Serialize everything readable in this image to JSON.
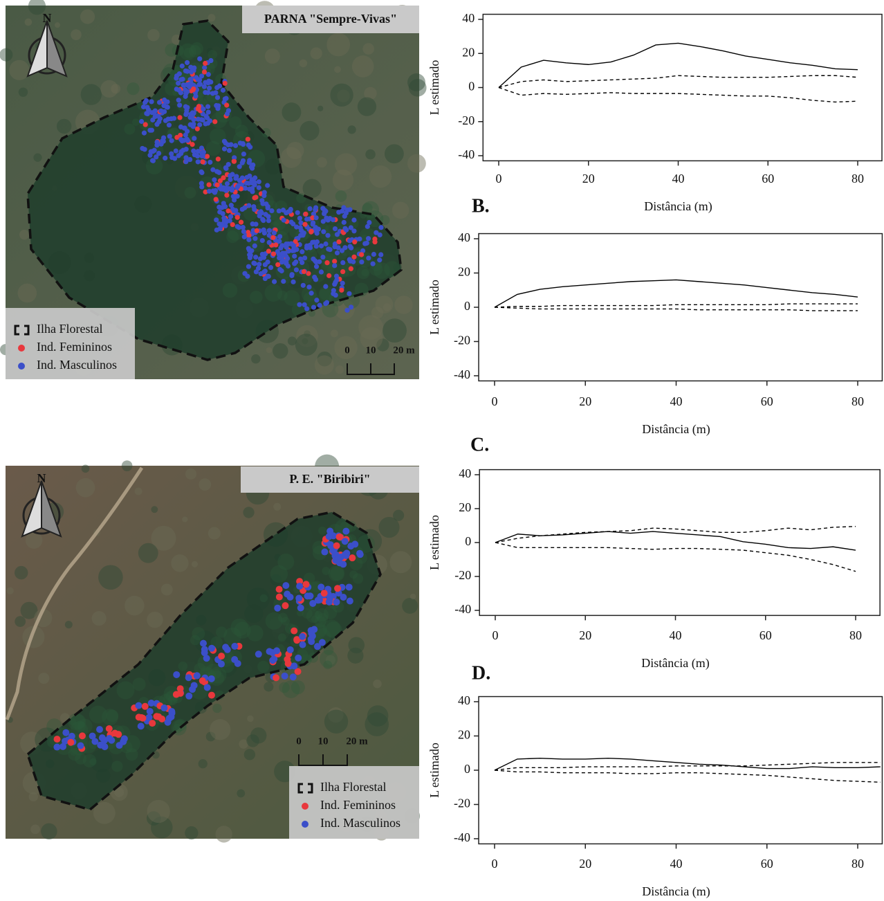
{
  "maps": [
    {
      "title": "PARNA \"Sempre-Vivas\"",
      "north": "N",
      "legend": [
        "Ilha Florestal",
        "Ind. Femininos",
        "Ind. Masculinos"
      ],
      "scale": [
        "0",
        "10",
        "20 m"
      ]
    },
    {
      "title": "P. E. \"Biribiri\"",
      "north": "N",
      "legend": [
        "Ilha Florestal",
        "Ind. Femininos",
        "Ind. Masculinos"
      ],
      "scale": [
        "0",
        "10",
        "20 m"
      ]
    }
  ],
  "chart_data": [
    {
      "type": "line",
      "xlabel": "Distância (m)",
      "ylabel": "L estimado",
      "x": [
        0,
        5,
        10,
        15,
        20,
        25,
        30,
        35,
        40,
        45,
        50,
        55,
        60,
        65,
        70,
        75,
        80
      ],
      "series": [
        {
          "color": "#000000",
          "dashed": false,
          "values": [
            0,
            12,
            16,
            14.5,
            13.5,
            15,
            19,
            25,
            26,
            24,
            21.5,
            18.5,
            16.5,
            14.5,
            13,
            11,
            10.5
          ]
        },
        {
          "color": "#000000",
          "dashed": true,
          "values": [
            0,
            3.5,
            4.5,
            3.5,
            4,
            4.5,
            5,
            5.5,
            7,
            6.5,
            6,
            6,
            6,
            6.5,
            7,
            7,
            6
          ]
        },
        {
          "color": "#000000",
          "dashed": true,
          "values": [
            0,
            -4.5,
            -3.5,
            -4,
            -3.5,
            -3,
            -3.5,
            -3.5,
            -3.5,
            -4,
            -4.5,
            -5,
            -5,
            -6,
            -7.5,
            -8.5,
            -8
          ]
        }
      ],
      "xlim": [
        -3.5,
        85.4
      ],
      "ylim": [
        -43,
        43
      ],
      "xticks": [
        0,
        20,
        40,
        60,
        80
      ],
      "yticks": [
        -40,
        -20,
        0,
        20,
        40
      ]
    },
    {
      "type": "line",
      "panel_label": "B.",
      "xlabel": "Distância (m)",
      "ylabel": "L estimado",
      "x": [
        0,
        5,
        10,
        15,
        20,
        25,
        30,
        35,
        40,
        45,
        50,
        55,
        60,
        65,
        70,
        75,
        80
      ],
      "series": [
        {
          "color": "#000000",
          "dashed": false,
          "values": [
            0,
            7.5,
            10.5,
            12,
            13,
            14,
            15,
            15.5,
            16,
            15,
            14,
            13,
            11.5,
            10,
            8.5,
            7.5,
            6
          ]
        },
        {
          "color": "#000000",
          "dashed": true,
          "values": [
            0,
            0.5,
            0.5,
            1,
            1,
            1,
            1,
            1,
            1.5,
            1.5,
            1.5,
            1.5,
            1.5,
            2,
            2,
            2,
            2
          ]
        },
        {
          "color": "#000000",
          "dashed": true,
          "values": [
            0,
            -0.5,
            -1,
            -1,
            -1,
            -1,
            -1,
            -1,
            -1,
            -1.5,
            -1.5,
            -1.5,
            -1.5,
            -1.5,
            -2,
            -2,
            -2
          ]
        }
      ],
      "xlim": [
        -3.5,
        85.4
      ],
      "ylim": [
        -43,
        43
      ],
      "xticks": [
        0,
        20,
        40,
        60,
        80
      ],
      "yticks": [
        -40,
        -20,
        0,
        20,
        40
      ]
    },
    {
      "type": "line",
      "panel_label": "C.",
      "xlabel": "Distância (m)",
      "ylabel": "L estimado",
      "x": [
        0,
        5,
        10,
        15,
        20,
        25,
        30,
        35,
        40,
        45,
        50,
        55,
        60,
        65,
        70,
        75,
        80
      ],
      "series": [
        {
          "color": "#000000",
          "dashed": false,
          "values": [
            0,
            5,
            4,
            4.5,
            5.5,
            6.5,
            5.5,
            6.5,
            5.5,
            4.5,
            3.5,
            0.5,
            -1,
            -3,
            -3.5,
            -2.5,
            -4.5
          ]
        },
        {
          "color": "#000000",
          "dashed": true,
          "values": [
            0,
            2.5,
            4,
            5,
            6,
            6.5,
            7,
            8.5,
            8,
            7,
            6,
            6,
            7,
            8.5,
            7.5,
            9,
            9.5
          ]
        },
        {
          "color": "#000000",
          "dashed": true,
          "values": [
            0,
            -3,
            -3,
            -3,
            -3,
            -3,
            -3.5,
            -4,
            -3.5,
            -3.5,
            -4,
            -4.5,
            -6,
            -7.5,
            -10,
            -13,
            -17
          ]
        }
      ],
      "xlim": [
        -3.5,
        85.4
      ],
      "ylim": [
        -43,
        43
      ],
      "xticks": [
        0,
        20,
        40,
        60,
        80
      ],
      "yticks": [
        -40,
        -20,
        0,
        20,
        40
      ]
    },
    {
      "type": "line",
      "panel_label": "D.",
      "xlabel": "Distância (m)",
      "ylabel": "L estimado",
      "x": [
        0,
        5,
        10,
        15,
        20,
        25,
        30,
        35,
        40,
        45,
        50,
        55,
        60,
        65,
        70,
        75,
        80,
        85
      ],
      "series": [
        {
          "color": "#000000",
          "dashed": false,
          "values": [
            0,
            6.5,
            7,
            6.5,
            6.5,
            7,
            6.5,
            5.5,
            4.5,
            3.5,
            3,
            2,
            1,
            1,
            2,
            1.5,
            1.5,
            2
          ]
        },
        {
          "color": "#000000",
          "dashed": true,
          "values": [
            0,
            1.5,
            1.5,
            1.5,
            2,
            2,
            2,
            2,
            2.5,
            2.5,
            2.5,
            2.5,
            3,
            3.5,
            4,
            4.5,
            4.5,
            4.5
          ]
        },
        {
          "color": "#000000",
          "dashed": true,
          "values": [
            0,
            -1,
            -1,
            -1.5,
            -1.5,
            -1.5,
            -2,
            -2,
            -1.5,
            -1.5,
            -2,
            -2.5,
            -3,
            -4,
            -5,
            -6,
            -6.5,
            -7
          ]
        }
      ],
      "xlim": [
        -3.5,
        85.4
      ],
      "ylim": [
        -43,
        43
      ],
      "xticks": [
        0,
        20,
        40,
        60,
        80
      ],
      "yticks": [
        -40,
        -20,
        0,
        20,
        40
      ]
    }
  ]
}
